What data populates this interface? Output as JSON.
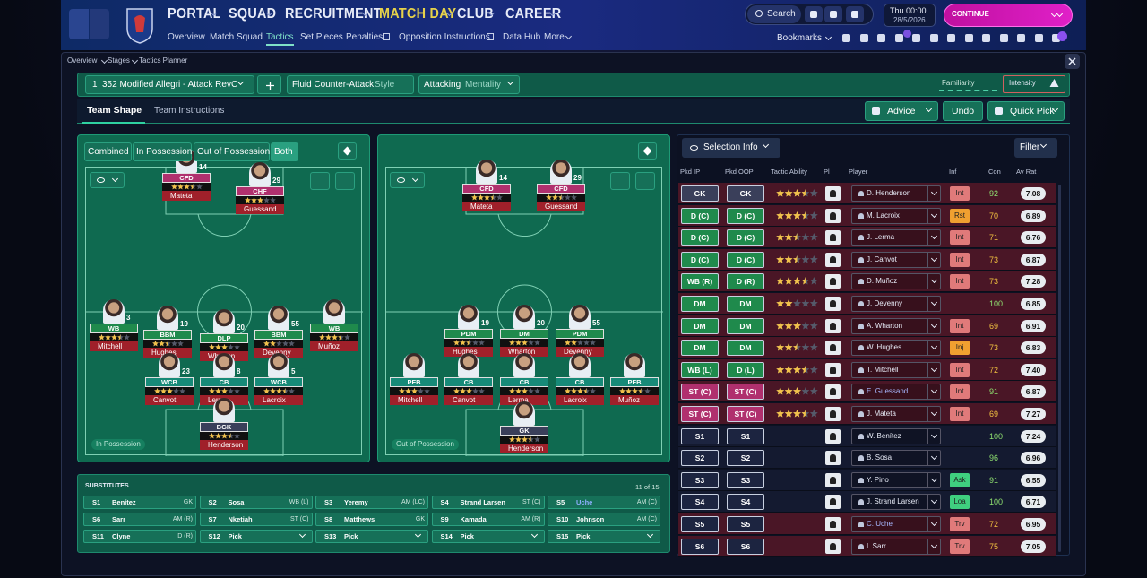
{
  "header": {
    "nav": [
      {
        "label": "PORTAL"
      },
      {
        "label": "SQUAD"
      },
      {
        "label": "RECRUITMENT"
      },
      {
        "label": "MATCH DAY",
        "color": "#e6d24a"
      },
      {
        "label": "CLUB"
      },
      {
        "label": "CAREER"
      }
    ],
    "subnav": [
      {
        "label": "Overview"
      },
      {
        "label": "Match Squad"
      },
      {
        "label": "Tactics",
        "color": "#7fe0c8"
      },
      {
        "label": "Set Pieces"
      },
      {
        "label": "Penalties"
      },
      {
        "label": "Opposition Instructions"
      },
      {
        "label": "Data Hub"
      },
      {
        "label": "More"
      }
    ],
    "search": "Search",
    "time": "Thu 00:00",
    "date": "28/5/2026",
    "continue": "CONTINUE",
    "bookmarks": "Bookmarks"
  },
  "breadcrumb": [
    "Overview",
    "Stages",
    "Tactics Planner"
  ],
  "toolbar": {
    "slot": "1",
    "tactic": "352 Modified Allegri - Attack RevC",
    "style": "Fluid Counter-Attack",
    "style_label": "Style",
    "mentality": "Attacking",
    "mentality_label": "Mentality",
    "familiarity": "Familiarity",
    "intensity": "Intensity"
  },
  "tabs": [
    "Team Shape",
    "Team Instructions"
  ],
  "actions": [
    "Advice",
    "Undo",
    "Quick Pick"
  ],
  "pitch_filters": [
    "Combined",
    "In Possession",
    "Out of Possession",
    "Both"
  ],
  "pitches": [
    {
      "label": "In Possession",
      "players": [
        {
          "role": "CFD",
          "name": "Mateta",
          "number": 14,
          "stars": 3.5,
          "color": "#b0306e"
        },
        {
          "role": "CHF",
          "name": "Guessand",
          "number": 29,
          "stars": 3,
          "color": "#b0306e"
        },
        {
          "role": "WB",
          "name": "Mitchell",
          "number": 3,
          "stars": 3.5,
          "color": "#1f8a4c"
        },
        {
          "role": "BBM",
          "name": "Hughes",
          "number": 19,
          "stars": 2.5,
          "color": "#1f8a4c"
        },
        {
          "role": "DLP",
          "name": "Wharton",
          "number": 20,
          "stars": 3,
          "color": "#1f8a4c"
        },
        {
          "role": "BBM",
          "name": "Devenny",
          "number": 55,
          "stars": 2,
          "color": "#1f8a4c"
        },
        {
          "role": "WB",
          "name": "Muñoz",
          "stars": 3.5,
          "color": "#1f8a4c"
        },
        {
          "role": "WCB",
          "name": "Canvot",
          "number": 23,
          "stars": 3,
          "color": "#178a78"
        },
        {
          "role": "CB",
          "name": "Lerma",
          "number": 8,
          "stars": 3,
          "color": "#178a78"
        },
        {
          "role": "WCB",
          "name": "Lacroix",
          "number": 5,
          "stars": 3.5,
          "color": "#178a78"
        },
        {
          "role": "BGK",
          "name": "Henderson",
          "stars": 3.5,
          "color": "#3a3f5a"
        }
      ]
    },
    {
      "label": "Out of Possession",
      "players": [
        {
          "role": "CFD",
          "name": "Mateta",
          "number": 14,
          "stars": 3.5,
          "color": "#b0306e"
        },
        {
          "role": "CFD",
          "name": "Guessand",
          "number": 29,
          "stars": 2.5,
          "color": "#b0306e"
        },
        {
          "role": "PDM",
          "name": "Hughes",
          "number": 19,
          "stars": 2.5,
          "color": "#1f8a4c"
        },
        {
          "role": "DM",
          "name": "Wharton",
          "number": 20,
          "stars": 3,
          "color": "#1f8a4c"
        },
        {
          "role": "PDM",
          "name": "Devenny",
          "number": 55,
          "stars": 2,
          "color": "#1f8a4c"
        },
        {
          "role": "PFB",
          "name": "Mitchell",
          "stars": 3,
          "color": "#178a78"
        },
        {
          "role": "CB",
          "name": "Canvot",
          "stars": 3,
          "color": "#178a78"
        },
        {
          "role": "CB",
          "name": "Lerma",
          "stars": 3,
          "color": "#178a78"
        },
        {
          "role": "CB",
          "name": "Lacroix",
          "stars": 3.5,
          "color": "#178a78"
        },
        {
          "role": "PFB",
          "name": "Muñoz",
          "stars": 3.5,
          "color": "#178a78"
        },
        {
          "role": "GK",
          "name": "Henderson",
          "stars": 3.5,
          "color": "#3a3f5a"
        }
      ]
    }
  ],
  "substitutes": {
    "title": "SUBSTITUTES",
    "count": "11 of 15",
    "slots": [
      {
        "slot": "S1",
        "name": "Benítez",
        "pos": "GK"
      },
      {
        "slot": "S2",
        "name": "Sosa",
        "pos": "WB (L)"
      },
      {
        "slot": "S3",
        "name": "Yeremy",
        "pos": "AM (LC)"
      },
      {
        "slot": "S4",
        "name": "Strand Larsen",
        "pos": "ST (C)"
      },
      {
        "slot": "S5",
        "name": "Uche",
        "pos": "AM (C)",
        "color": "#8fb0ff"
      },
      {
        "slot": "S6",
        "name": "Sarr",
        "pos": "AM (R)"
      },
      {
        "slot": "S7",
        "name": "Nketiah",
        "pos": "ST (C)"
      },
      {
        "slot": "S8",
        "name": "Matthews",
        "pos": "GK"
      },
      {
        "slot": "S9",
        "name": "Kamada",
        "pos": "AM (R)"
      },
      {
        "slot": "S10",
        "name": "Johnson",
        "pos": "AM (C)"
      },
      {
        "slot": "S11",
        "name": "Clyne",
        "pos": "D (R)"
      },
      {
        "slot": "S12",
        "name": "Pick"
      },
      {
        "slot": "S13",
        "name": "Pick"
      },
      {
        "slot": "S14",
        "name": "Pick"
      },
      {
        "slot": "S15",
        "name": "Pick"
      }
    ]
  },
  "selection": {
    "title": "Selection Info",
    "filter": "Filter",
    "columns": [
      "Pkd IP",
      "Pkd OOP",
      "Tactic Ability",
      "Pl",
      "Player",
      "Inf",
      "Con",
      "Av Rat"
    ],
    "rows": [
      {
        "ip": "GK",
        "oop": "GK",
        "stars": 3.5,
        "player": "D. Henderson",
        "inf": "Int",
        "inf_color": "#e07a7a",
        "con": 92,
        "rating": "7.08",
        "color": "#4a1626"
      },
      {
        "ip": "D (C)",
        "oop": "D (C)",
        "stars": 3.5,
        "player": "M. Lacroix",
        "inf": "Rst",
        "inf_color": "#f0a030",
        "con": 70,
        "rating": "6.89",
        "color": "#4a1626"
      },
      {
        "ip": "D (C)",
        "oop": "D (C)",
        "stars": 2.5,
        "player": "J. Lerma",
        "inf": "Int",
        "inf_color": "#e07a7a",
        "con": 71,
        "rating": "6.76",
        "color": "#4a1626"
      },
      {
        "ip": "D (C)",
        "oop": "D (C)",
        "stars": 2.5,
        "player": "J. Canvot",
        "inf": "Int",
        "inf_color": "#e07a7a",
        "con": 73,
        "rating": "6.87",
        "color": "#4a1626"
      },
      {
        "ip": "WB (R)",
        "oop": "D (R)",
        "stars": 3.5,
        "player": "D. Muñoz",
        "inf": "Int",
        "inf_color": "#e07a7a",
        "con": 73,
        "rating": "7.28",
        "color": "#4a1626"
      },
      {
        "ip": "DM",
        "oop": "DM",
        "stars": 2,
        "player": "J. Devenny",
        "con": 100,
        "rating": "6.85",
        "color": "#4a1626"
      },
      {
        "ip": "DM",
        "oop": "DM",
        "stars": 3,
        "player": "A. Wharton",
        "inf": "Int",
        "inf_color": "#e07a7a",
        "con": 69,
        "rating": "6.91",
        "color": "#4a1626"
      },
      {
        "ip": "DM",
        "oop": "DM",
        "stars": 2.5,
        "player": "W. Hughes",
        "inf": "Inj",
        "inf_color": "#f0a030",
        "con": 73,
        "rating": "6.83",
        "color": "#4a1626"
      },
      {
        "ip": "WB (L)",
        "oop": "D (L)",
        "stars": 3.5,
        "player": "T. Mitchell",
        "inf": "Int",
        "inf_color": "#e07a7a",
        "con": 72,
        "rating": "7.40",
        "color": "#4a1626"
      },
      {
        "ip": "ST (C)",
        "oop": "ST (C)",
        "stars": 3,
        "player": "E. Guessand",
        "inf": "Int",
        "inf_color": "#e07a7a",
        "con": 91,
        "rating": "6.87",
        "color": "#4a1626"
      },
      {
        "ip": "ST (C)",
        "oop": "ST (C)",
        "stars": 3.5,
        "player": "J. Mateta",
        "inf": "Int",
        "inf_color": "#e07a7a",
        "con": 69,
        "rating": "7.27",
        "color": "#4a1626"
      },
      {
        "ip": "S1",
        "oop": "S1",
        "player": "W. Benítez",
        "con": 100,
        "rating": "7.24",
        "color": "#141a30"
      },
      {
        "ip": "S2",
        "oop": "S2",
        "player": "B. Sosa",
        "con": 96,
        "rating": "6.96",
        "color": "#141a30"
      },
      {
        "ip": "S3",
        "oop": "S3",
        "player": "Y. Pino",
        "inf": "Ask",
        "inf_color": "#3fcf7f",
        "con": 91,
        "rating": "6.55",
        "color": "#141a30"
      },
      {
        "ip": "S4",
        "oop": "S4",
        "player": "J. Strand Larsen",
        "inf": "Loa",
        "inf_color": "#3fcf7f",
        "con": 100,
        "rating": "6.71",
        "color": "#141a30"
      },
      {
        "ip": "S5",
        "oop": "S5",
        "player": "C. Uche",
        "inf": "Trv",
        "inf_color": "#e07a7a",
        "con": 72,
        "rating": "6.95",
        "color": "#4a1626"
      },
      {
        "ip": "S6",
        "oop": "S6",
        "player": "I. Sarr",
        "inf": "Trv",
        "inf_color": "#e07a7a",
        "con": 75,
        "rating": "7.05",
        "color": "#4a1626"
      }
    ]
  }
}
